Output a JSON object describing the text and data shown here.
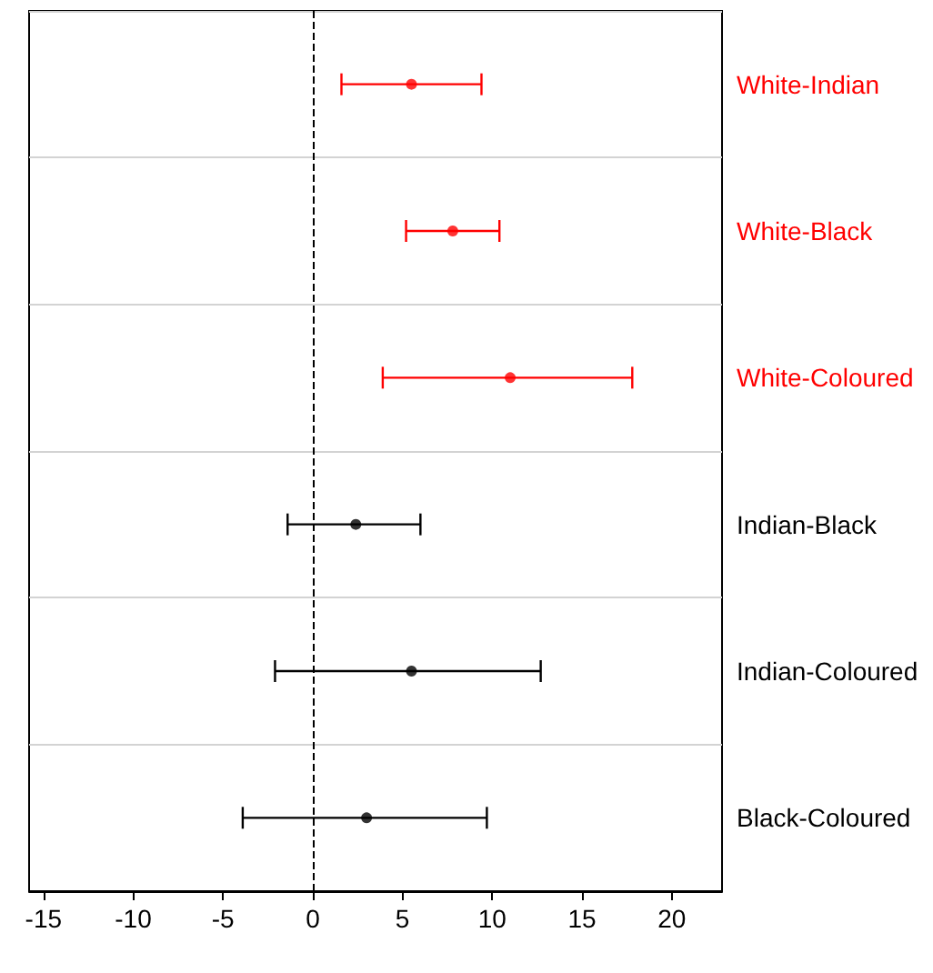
{
  "chart_data": {
    "type": "scatter",
    "orientation": "horizontal",
    "categories": [
      "White-Indian",
      "White-Black",
      "White-Coloured",
      "Indian-Black",
      "Indian-Coloured",
      "Black-Coloured"
    ],
    "values": [
      5.5,
      7.8,
      11.0,
      2.4,
      5.5,
      3.0
    ],
    "errors": [
      [
        1.6,
        9.4
      ],
      [
        5.2,
        10.4
      ],
      [
        3.9,
        17.8
      ],
      [
        -1.4,
        6.0
      ],
      [
        -2.1,
        12.7
      ],
      [
        -3.9,
        9.7
      ]
    ],
    "colors": [
      "#ff0000",
      "#ff0000",
      "#ff0000",
      "#000000",
      "#000000",
      "#000000"
    ],
    "marker": "circle",
    "xlim": [
      -15.8,
      22.8
    ],
    "xticks": [
      -15,
      -10,
      -5,
      0,
      5,
      10,
      15,
      20
    ],
    "grid": "y",
    "ref_lines": [
      {
        "axis": "x",
        "value": 0,
        "label": null,
        "color": "#000000",
        "line_style": "dashed"
      }
    ]
  }
}
